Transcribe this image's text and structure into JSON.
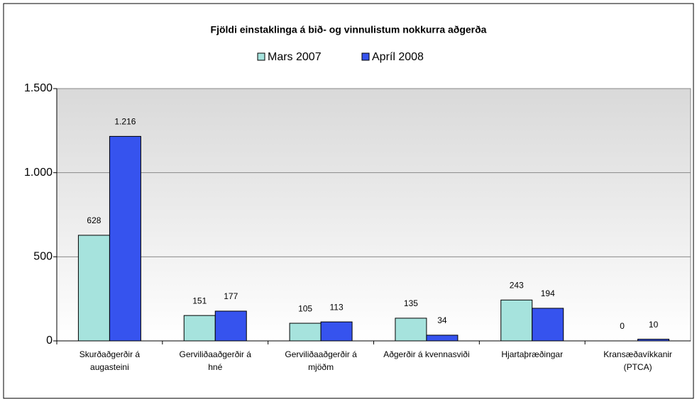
{
  "chart_data": {
    "type": "bar",
    "title": "Fjöldi einstaklinga á bið- og vinnulistum nokkurra aðgerða",
    "categories": [
      "Skurðaðgerðir á augasteini",
      "Gerviliðaaðgerðir á hné",
      "Gerviliðaaðgerðir á mjöðm",
      "Aðgerðir á kvennasviði",
      "Hjartaþræðingar",
      "Kransæðavíkkanir (PTCA)"
    ],
    "series": [
      {
        "name": "Mars 2007",
        "color": "#a6e3dd",
        "values": [
          628,
          151,
          105,
          135,
          243,
          0
        ]
      },
      {
        "name": "Apríl 2008",
        "color": "#3653ee",
        "values": [
          1216,
          177,
          113,
          34,
          194,
          10
        ],
        "value_labels": [
          "1.216",
          "177",
          "113",
          "34",
          "194",
          "10"
        ]
      }
    ],
    "ylim": [
      0,
      1500
    ],
    "yticks": [
      0,
      500,
      {
        "value": 1000,
        "label": "1.000"
      },
      {
        "value": 1500,
        "label": "1.500"
      }
    ],
    "grid": true
  }
}
